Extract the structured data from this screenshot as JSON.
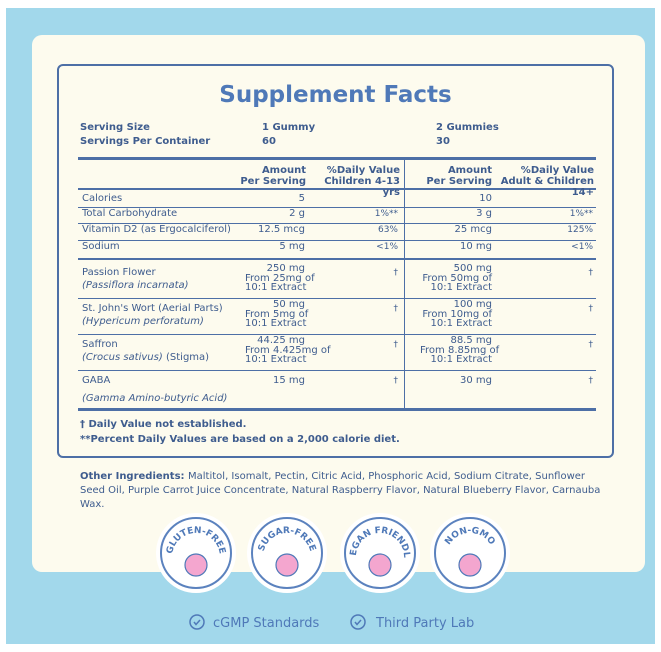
{
  "title": "Supplement Facts",
  "serving": [
    [
      "Serving Size",
      "1 Gummy",
      "2 Gummies"
    ],
    [
      "Servings Per Container",
      "60",
      "30"
    ]
  ],
  "table": {
    "header": [
      "Amount Per Serving",
      "%Daily Value Children 4-13 yrs",
      "Amount Per Serving",
      "%Daily Value Adult & Children 14+"
    ],
    "rows": [
      {
        "name": "Calories",
        "amount1": "5",
        "amount2": "10"
      },
      {
        "name": "Total Carbohydrate",
        "amount1": "2 g",
        "dv1": "1%**",
        "amount2": "3 g",
        "dv2": "1%**"
      },
      {
        "name": "Vitamin D2 (as Ergocalciferol)",
        "amount1": "12.5 mcg",
        "dv1": "63%",
        "amount2": "25 mcg",
        "dv2": "125%"
      },
      {
        "name": "Sodium",
        "amount1": "5 mg",
        "dv1": "<1%",
        "amount2": "10 mg",
        "dv2": "<1%"
      },
      {
        "name": "Passion Flower",
        "sub": "(Passiflora incarnata)",
        "amount1": [
          "250 mg",
          "From 25mg of",
          "10:1 Extract"
        ],
        "dv1": "†",
        "amount2": [
          "500 mg",
          "From 50mg of",
          "10:1 Extract"
        ],
        "dv2": "†"
      },
      {
        "name": "St. John's Wort (Aerial Parts)",
        "sub": "(Hypericum perforatum)",
        "amount1": [
          "50 mg",
          "From 5mg of",
          "10:1 Extract"
        ],
        "dv1": "†",
        "amount2": [
          "100 mg",
          "From 10mg of",
          "10:1 Extract"
        ],
        "dv2": "†"
      },
      {
        "name": "Saffron",
        "sub": "(Crocus sativus)",
        "subNote": "(Stigma)",
        "amount1": [
          "44.25 mg",
          "From 4.425mg of",
          "10:1 Extract"
        ],
        "dv1": "†",
        "amount2": [
          "88.5 mg",
          "From 8.85mg of",
          "10:1 Extract"
        ],
        "dv2": "†"
      },
      {
        "name": "GABA",
        "sub": "(Gamma Amino-butyric Acid)",
        "amount1": "15 mg",
        "dv1": "†",
        "amount2": "30 mg",
        "dv2": "†"
      }
    ]
  },
  "footnotes": [
    "† Daily Value not established.",
    "**Percent Daily Values are based on a 2,000 calorie diet."
  ],
  "other_ingredients": {
    "label": "Other Ingredients:",
    "text": "Maltitol, Isomalt, Pectin, Citric Acid, Phosphoric Acid, Sodium Citrate, Sunflower Seed Oil, Purple Carrot Juice Concentrate, Natural Raspberry Flavor, Natural Blueberry Flavor, Carnauba Wax."
  },
  "badges": [
    "GLUTEN-FREE",
    "SUGAR-FREE",
    "VEGAN FRIENDLY",
    "NON-GMO"
  ],
  "footer": [
    "cGMP Standards",
    "Third Party Lab"
  ]
}
